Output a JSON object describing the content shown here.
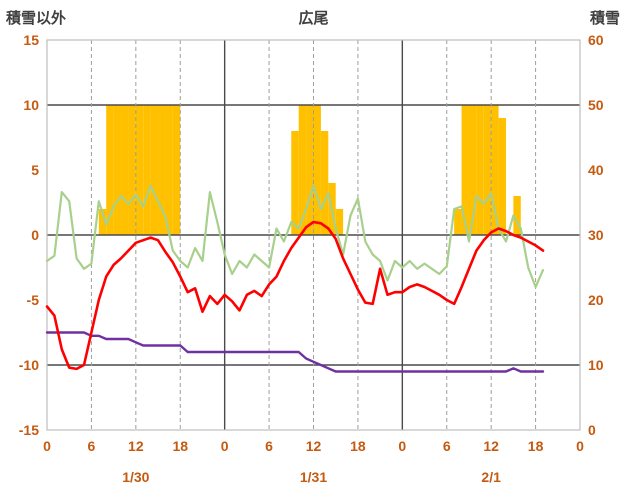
{
  "chart_data": {
    "type": "combo",
    "title": "広尾",
    "axes": {
      "left": {
        "title": "積雪以外",
        "min": -15,
        "max": 15,
        "ticks": [
          15,
          10,
          5,
          0,
          -5,
          -10,
          -15
        ],
        "gridlines_at": [
          10,
          0,
          -10
        ]
      },
      "right": {
        "title": "積雪",
        "min": 0,
        "max": 60,
        "ticks": [
          60,
          50,
          40,
          30,
          20,
          10,
          0
        ]
      },
      "x": {
        "total_hours": 72,
        "label_every_hours": 6,
        "hour_labels": [
          "0",
          "6",
          "12",
          "18",
          "0",
          "6",
          "12",
          "18",
          "0",
          "6",
          "12",
          "18",
          "0"
        ],
        "day_labels": [
          "1/30",
          "1/31",
          "2/1"
        ],
        "day_boundaries_hours": [
          24,
          48
        ],
        "dashed_gridlines_hours": [
          6,
          12,
          18,
          30,
          36,
          42,
          54,
          60,
          66
        ]
      }
    },
    "series": [
      {
        "name": "bar-series",
        "type": "bar",
        "axis": "left",
        "color": "#FFC000",
        "points": [
          [
            7,
            2
          ],
          [
            8,
            10
          ],
          [
            9,
            10
          ],
          [
            10,
            10
          ],
          [
            11,
            10
          ],
          [
            12,
            10
          ],
          [
            13,
            10
          ],
          [
            14,
            10
          ],
          [
            15,
            10
          ],
          [
            16,
            10
          ],
          [
            17,
            10
          ],
          [
            33,
            8
          ],
          [
            34,
            10
          ],
          [
            35,
            10
          ],
          [
            36,
            10
          ],
          [
            37,
            8
          ],
          [
            38,
            4
          ],
          [
            39,
            2
          ],
          [
            55,
            2
          ],
          [
            56,
            10
          ],
          [
            57,
            10
          ],
          [
            58,
            10
          ],
          [
            59,
            10
          ],
          [
            60,
            10
          ],
          [
            61,
            9
          ],
          [
            63,
            3
          ]
        ]
      },
      {
        "name": "green-line-series",
        "type": "line",
        "axis": "left",
        "color": "#A8D08D",
        "width": 2.2,
        "values": [
          -2.0,
          -1.6,
          3.3,
          2.6,
          -1.8,
          -2.6,
          -2.2,
          2.6,
          0.8,
          2.2,
          3.0,
          2.4,
          3.1,
          2.2,
          3.8,
          2.6,
          1.4,
          -1.2,
          -2.0,
          -2.5,
          -1.0,
          -2.0,
          3.3,
          1.0,
          -1.5,
          -3.0,
          -2.0,
          -2.5,
          -1.5,
          -2.0,
          -2.5,
          0.5,
          -0.5,
          1.0,
          0.5,
          2.0,
          3.8,
          2.0,
          3.2,
          0.5,
          -1.5,
          1.5,
          2.8,
          -0.5,
          -1.5,
          -2.0,
          -3.5,
          -2.0,
          -2.5,
          -2.0,
          -2.6,
          -2.2,
          -2.6,
          -3.0,
          -2.4,
          2.0,
          2.2,
          -0.5,
          3.0,
          2.4,
          3.2,
          0.5,
          -0.5,
          1.5,
          0.5,
          -2.5,
          -4.0,
          -2.7
        ]
      },
      {
        "name": "snow-depth-line-series",
        "type": "line",
        "axis": "right",
        "color": "#7030A0",
        "width": 2.4,
        "values": [
          15,
          15,
          15,
          15,
          15,
          15,
          14.5,
          14.5,
          14,
          14,
          14,
          14,
          13.5,
          13,
          13,
          13,
          13,
          13,
          13,
          12,
          12,
          12,
          12,
          12,
          12,
          12,
          12,
          12,
          12,
          12,
          12,
          12,
          12,
          12,
          12,
          11,
          10.5,
          10,
          9.5,
          9,
          9,
          9,
          9,
          9,
          9,
          9,
          9,
          9,
          9,
          9,
          9,
          9,
          9,
          9,
          9,
          9,
          9,
          9,
          9,
          9,
          9,
          9,
          9,
          9.5,
          9,
          9,
          9,
          9
        ]
      },
      {
        "name": "red-line-series",
        "type": "line",
        "axis": "left",
        "color": "#FF0000",
        "width": 2.6,
        "values": [
          -5.5,
          -6.2,
          -8.8,
          -10.2,
          -10.3,
          -10.0,
          -7.5,
          -5.0,
          -3.2,
          -2.3,
          -1.8,
          -1.2,
          -0.6,
          -0.4,
          -0.2,
          -0.4,
          -1.3,
          -2.1,
          -3.2,
          -4.4,
          -4.1,
          -5.9,
          -4.7,
          -5.3,
          -4.6,
          -5.1,
          -5.8,
          -4.6,
          -4.3,
          -4.7,
          -3.8,
          -3.2,
          -2.0,
          -1.0,
          -0.2,
          0.6,
          1.0,
          0.9,
          0.5,
          -0.3,
          -1.8,
          -3.0,
          -4.2,
          -5.2,
          -5.3,
          -2.6,
          -4.6,
          -4.4,
          -4.4,
          -4.0,
          -3.8,
          -4.0,
          -4.3,
          -4.6,
          -5.0,
          -5.3,
          -4.0,
          -2.6,
          -1.2,
          -0.4,
          0.2,
          0.5,
          0.3,
          0.0,
          -0.2,
          -0.5,
          -0.8,
          -1.2
        ]
      }
    ],
    "colors": {
      "bar": "#FFC000",
      "green_line": "#A8D08D",
      "purple_line": "#7030A0",
      "red_line": "#FF0000",
      "tick_labels": "#C55A11",
      "titles": "#404040",
      "grid_major": "#4A4A4A",
      "grid_dashed": "#9E9E9E",
      "day_boundary": "#4A4A4A",
      "border": "#BFBFBF",
      "background": "#FFFFFF"
    }
  }
}
